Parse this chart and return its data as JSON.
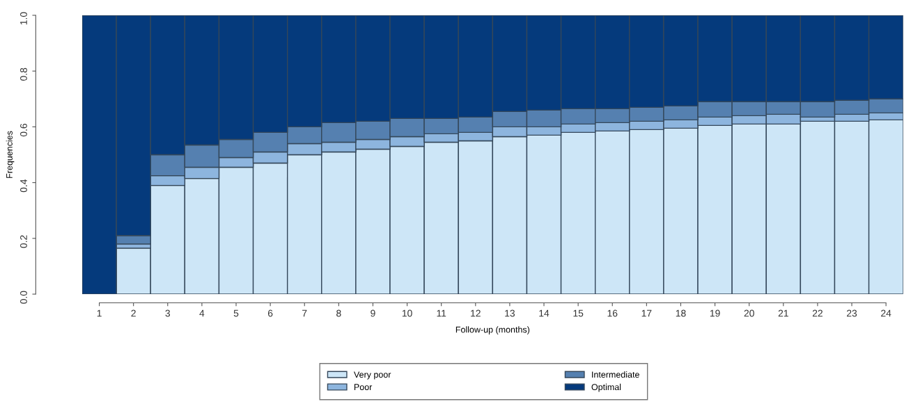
{
  "chart_data": {
    "type": "bar",
    "stacked": true,
    "xlabel": "Follow-up (months)",
    "ylabel": "Frequencies",
    "categories": [
      "1",
      "2",
      "3",
      "4",
      "5",
      "6",
      "7",
      "8",
      "9",
      "10",
      "11",
      "12",
      "13",
      "14",
      "15",
      "16",
      "17",
      "18",
      "19",
      "20",
      "21",
      "22",
      "23",
      "24"
    ],
    "ylim": [
      0,
      1
    ],
    "yticks": [
      {
        "value": 0,
        "label": "0.0"
      },
      {
        "value": 0.2,
        "label": "0.2"
      },
      {
        "value": 0.4,
        "label": "0.4"
      },
      {
        "value": 0.6,
        "label": "0.6"
      },
      {
        "value": 0.8,
        "label": "0.8"
      },
      {
        "value": 1,
        "label": "1.0"
      }
    ],
    "grid": false,
    "legend": "bottom",
    "series": [
      {
        "name": "Very poor",
        "color": "#cde6f7",
        "values": [
          0,
          0.165,
          0.39,
          0.415,
          0.455,
          0.47,
          0.5,
          0.51,
          0.52,
          0.53,
          0.545,
          0.55,
          0.565,
          0.57,
          0.58,
          0.585,
          0.59,
          0.595,
          0.605,
          0.61,
          0.61,
          0.62,
          0.62,
          0.625
        ]
      },
      {
        "name": "Poor",
        "color": "#8db5de",
        "values": [
          0,
          0.015,
          0.035,
          0.04,
          0.035,
          0.04,
          0.04,
          0.035,
          0.035,
          0.035,
          0.03,
          0.03,
          0.035,
          0.03,
          0.03,
          0.03,
          0.03,
          0.03,
          0.03,
          0.03,
          0.035,
          0.015,
          0.025,
          0.025
        ]
      },
      {
        "name": "Intermediate",
        "color": "#5580b0",
        "values": [
          0,
          0.03,
          0.075,
          0.08,
          0.065,
          0.07,
          0.06,
          0.07,
          0.065,
          0.065,
          0.055,
          0.055,
          0.055,
          0.06,
          0.055,
          0.05,
          0.05,
          0.05,
          0.055,
          0.05,
          0.045,
          0.055,
          0.05,
          0.05
        ]
      },
      {
        "name": "Optimal",
        "color": "#053a7c",
        "values": [
          1,
          0.79,
          0.5,
          0.465,
          0.445,
          0.42,
          0.4,
          0.385,
          0.38,
          0.37,
          0.37,
          0.365,
          0.345,
          0.34,
          0.335,
          0.335,
          0.33,
          0.325,
          0.31,
          0.31,
          0.31,
          0.31,
          0.305,
          0.3
        ]
      }
    ]
  }
}
